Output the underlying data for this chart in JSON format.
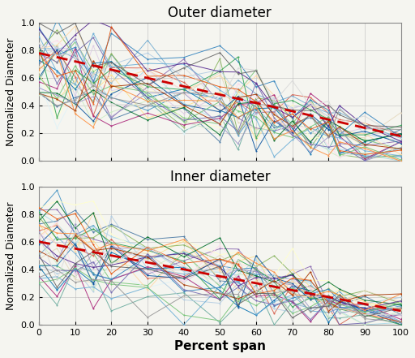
{
  "title_top": "Outer diameter",
  "title_bottom": "Inner diameter",
  "xlabel": "Percent span",
  "ylabel": "Normalized Diameter",
  "xlim": [
    0,
    100
  ],
  "ylim": [
    0,
    1
  ],
  "xticks": [
    0,
    10,
    20,
    30,
    40,
    50,
    60,
    70,
    80,
    90,
    100
  ],
  "yticks": [
    0,
    0.2,
    0.4,
    0.6,
    0.8,
    1.0
  ],
  "fit_outer_start": 0.78,
  "fit_outer_end": 0.18,
  "fit_inner_start": 0.6,
  "fit_inner_end": 0.1,
  "n_series": 35,
  "seed_outer": 7,
  "seed_inner": 13,
  "background_color": "#f5f5f0",
  "fit_color": "#cc0000",
  "fit_linewidth": 2.0,
  "data_linewidth": 0.7,
  "marker_size": 3.0,
  "title_fontsize": 12,
  "label_fontsize": 9,
  "tick_fontsize": 8,
  "fig_width": 5.12,
  "fig_height": 4.41,
  "dpi": 100
}
